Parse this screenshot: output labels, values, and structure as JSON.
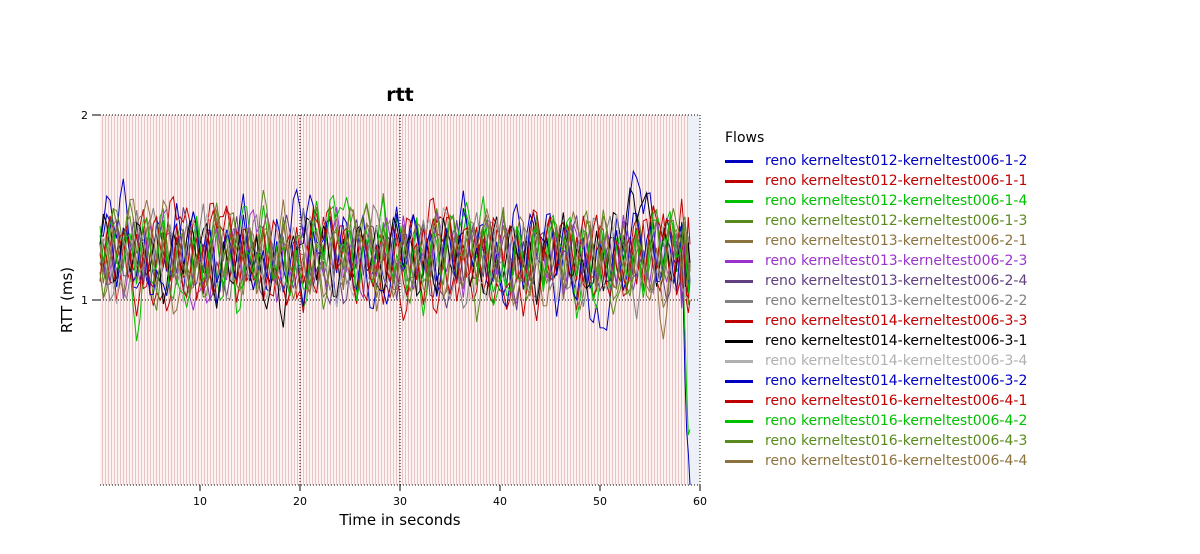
{
  "chart_data": {
    "type": "line",
    "title": "rtt",
    "xlabel": "Time in seconds",
    "ylabel": "RTT (ms)",
    "xlim": [
      0,
      60
    ],
    "ylim": [
      0,
      2
    ],
    "xticks": [
      10,
      20,
      30,
      40,
      50,
      60
    ],
    "yticks": [
      1,
      2
    ],
    "grid": true,
    "legend_title": "Flows",
    "legend_position": "right",
    "x": [
      0,
      2,
      4,
      6,
      8,
      10,
      12,
      14,
      16,
      18,
      20,
      22,
      24,
      26,
      28,
      30,
      32,
      34,
      36,
      38,
      40,
      42,
      44,
      46,
      48,
      50,
      52,
      54,
      56,
      58,
      59
    ],
    "series": [
      {
        "name": "reno kerneltest012-kerneltest006-1-2",
        "color": "#0000c0",
        "values": [
          1.3,
          1.55,
          1.1,
          1.4,
          1.2,
          1.35,
          1.05,
          1.45,
          1.25,
          1.15,
          1.5,
          1.3,
          1.1,
          1.4,
          1.2,
          1.35,
          1.25,
          1.1,
          1.45,
          1.3,
          1.15,
          1.4,
          1.2,
          1.05,
          1.3,
          0.85,
          1.35,
          1.6,
          1.2,
          1.4,
          0.0
        ]
      },
      {
        "name": "reno kerneltest012-kerneltest006-1-1",
        "color": "#c00000",
        "values": [
          1.2,
          1.1,
          1.4,
          1.0,
          1.3,
          1.25,
          1.45,
          1.1,
          1.3,
          1.2,
          1.05,
          1.4,
          1.25,
          1.15,
          1.35,
          1.0,
          1.3,
          1.45,
          1.1,
          1.2,
          1.35,
          1.05,
          1.3,
          1.25,
          1.1,
          1.4,
          1.15,
          1.3,
          1.05,
          1.45,
          1.0
        ]
      },
      {
        "name": "reno kerneltest012-kerneltest006-1-4",
        "color": "#00c000",
        "values": [
          1.35,
          1.2,
          0.9,
          1.45,
          1.15,
          1.3,
          1.0,
          1.4,
          1.2,
          1.35,
          1.1,
          1.25,
          1.5,
          1.15,
          1.3,
          1.4,
          1.05,
          1.3,
          1.2,
          1.45,
          1.1,
          1.3,
          1.2,
          1.35,
          1.0,
          1.25,
          1.3,
          1.15,
          1.4,
          1.2,
          0.3
        ]
      },
      {
        "name": "reno kerneltest012-kerneltest006-1-3",
        "color": "#5a8a1e",
        "values": [
          1.25,
          1.35,
          1.2,
          1.1,
          1.4,
          1.2,
          1.3,
          1.05,
          1.45,
          1.25,
          1.2,
          1.35,
          1.1,
          1.3,
          1.45,
          1.2,
          1.1,
          1.35,
          1.25,
          1.0,
          1.4,
          1.2,
          1.3,
          1.15,
          1.35,
          1.2,
          1.05,
          1.4,
          1.3,
          1.25,
          1.1
        ]
      },
      {
        "name": "reno kerneltest013-kerneltest006-2-1",
        "color": "#8b7340",
        "values": [
          1.15,
          1.3,
          1.45,
          1.2,
          1.05,
          1.35,
          1.2,
          1.3,
          1.1,
          1.4,
          1.25,
          1.15,
          1.3,
          1.35,
          1.05,
          1.25,
          1.4,
          1.2,
          1.1,
          1.3,
          1.25,
          1.45,
          1.1,
          1.2,
          0.95,
          1.3,
          1.2,
          1.35,
          0.9,
          1.3,
          1.2
        ]
      },
      {
        "name": "reno kerneltest013-kerneltest006-2-3",
        "color": "#9933cc",
        "values": [
          1.3,
          1.2,
          1.1,
          1.35,
          1.25,
          1.05,
          1.3,
          1.2,
          1.4,
          1.1,
          1.3,
          1.2,
          1.35,
          1.05,
          1.25,
          1.3,
          1.2,
          1.4,
          1.15,
          1.25,
          1.3,
          1.1,
          1.35,
          1.2,
          1.25,
          1.15,
          1.3,
          1.2,
          1.35,
          1.1,
          1.2
        ]
      },
      {
        "name": "reno kerneltest013-kerneltest006-2-4",
        "color": "#604080",
        "values": [
          1.2,
          1.3,
          1.25,
          1.1,
          1.35,
          1.2,
          1.15,
          1.3,
          1.05,
          1.25,
          1.35,
          1.2,
          1.1,
          1.3,
          1.2,
          1.15,
          1.35,
          1.05,
          1.3,
          1.2,
          1.25,
          1.1,
          1.35,
          1.2,
          1.3,
          1.05,
          1.25,
          1.3,
          1.15,
          1.2,
          1.1
        ]
      },
      {
        "name": "reno kerneltest013-kerneltest006-2-2",
        "color": "#808080",
        "values": [
          1.25,
          1.1,
          1.35,
          1.3,
          1.15,
          1.4,
          1.1,
          1.25,
          1.3,
          1.05,
          1.35,
          1.15,
          1.3,
          1.2,
          1.4,
          1.1,
          1.25,
          1.3,
          1.05,
          1.35,
          1.2,
          1.25,
          1.15,
          1.3,
          1.1,
          1.35,
          1.2,
          1.05,
          1.3,
          1.25,
          1.15
        ]
      },
      {
        "name": "reno kerneltest014-kerneltest006-3-3",
        "color": "#c00000",
        "values": [
          1.1,
          1.35,
          1.2,
          1.3,
          1.45,
          1.1,
          1.25,
          1.35,
          1.15,
          1.3,
          1.05,
          1.25,
          1.4,
          1.2,
          1.1,
          1.3,
          1.25,
          1.05,
          1.35,
          1.2,
          1.3,
          1.15,
          1.05,
          1.4,
          1.2,
          1.3,
          1.1,
          1.25,
          1.35,
          1.2,
          1.3
        ]
      },
      {
        "name": "reno kerneltest014-kerneltest006-3-1",
        "color": "#000000",
        "values": [
          1.3,
          1.25,
          1.4,
          1.15,
          1.2,
          1.3,
          1.1,
          1.35,
          1.2,
          0.95,
          1.3,
          1.25,
          1.15,
          1.4,
          1.2,
          1.3,
          1.05,
          1.25,
          1.35,
          1.15,
          1.3,
          1.2,
          1.1,
          1.35,
          1.25,
          1.2,
          1.35,
          1.5,
          1.2,
          1.3,
          1.2
        ]
      },
      {
        "name": "reno kerneltest014-kerneltest006-3-4",
        "color": "#b0b0b0",
        "values": [
          1.2,
          1.15,
          1.3,
          1.25,
          1.1,
          1.35,
          1.2,
          1.3,
          1.15,
          1.25,
          1.2,
          1.35,
          1.1,
          1.25,
          1.3,
          1.15,
          1.2,
          1.35,
          1.25,
          1.1,
          1.3,
          1.2,
          1.25,
          1.15,
          1.35,
          1.2,
          1.3,
          1.1,
          1.25,
          1.2,
          1.15
        ]
      },
      {
        "name": "reno kerneltest014-kerneltest006-3-2",
        "color": "#0000c0",
        "values": [
          1.35,
          1.2,
          1.3,
          1.1,
          1.4,
          1.25,
          1.15,
          1.3,
          1.2,
          1.35,
          1.1,
          1.25,
          1.3,
          1.2,
          1.05,
          1.35,
          1.25,
          1.15,
          1.3,
          1.4,
          1.1,
          1.2,
          1.35,
          1.25,
          1.15,
          1.3,
          1.2,
          1.35,
          1.1,
          1.25,
          1.2
        ]
      },
      {
        "name": "reno kerneltest016-kerneltest006-4-1",
        "color": "#c00000",
        "values": [
          1.25,
          1.3,
          1.05,
          1.35,
          1.2,
          1.15,
          1.4,
          1.2,
          1.3,
          1.1,
          1.25,
          1.35,
          1.2,
          1.15,
          1.3,
          1.25,
          1.1,
          1.35,
          1.2,
          1.3,
          1.05,
          1.25,
          1.35,
          1.2,
          1.3,
          1.15,
          1.25,
          1.2,
          1.4,
          1.1,
          1.2
        ]
      },
      {
        "name": "reno kerneltest016-kerneltest006-4-2",
        "color": "#00c000",
        "values": [
          1.4,
          1.15,
          1.25,
          1.35,
          1.05,
          1.3,
          1.2,
          0.95,
          1.35,
          1.25,
          1.15,
          1.4,
          1.3,
          1.1,
          1.45,
          1.2,
          1.3,
          1.15,
          1.4,
          1.25,
          1.1,
          1.35,
          1.2,
          1.3,
          1.25,
          1.1,
          1.35,
          1.2,
          1.3,
          1.25,
          1.2
        ]
      },
      {
        "name": "reno kerneltest016-kerneltest006-4-3",
        "color": "#5a8a1e",
        "values": [
          1.15,
          1.4,
          1.3,
          1.2,
          1.35,
          1.1,
          1.4,
          1.25,
          1.2,
          1.3,
          1.35,
          1.1,
          1.25,
          1.4,
          1.2,
          1.3,
          1.15,
          1.35,
          1.25,
          1.2,
          1.4,
          1.1,
          1.3,
          1.25,
          1.2,
          1.35,
          1.1,
          1.3,
          1.25,
          1.35,
          1.2
        ]
      },
      {
        "name": "reno kerneltest016-kerneltest006-4-4",
        "color": "#8b7340",
        "values": [
          1.3,
          1.2,
          1.15,
          1.4,
          1.25,
          1.2,
          1.35,
          1.1,
          1.3,
          1.25,
          1.15,
          1.3,
          1.2,
          1.35,
          1.1,
          1.25,
          1.3,
          1.2,
          1.15,
          1.35,
          1.25,
          1.1,
          1.3,
          1.2,
          1.35,
          1.15,
          1.25,
          1.3,
          1.1,
          1.25,
          1.2
        ]
      }
    ]
  }
}
